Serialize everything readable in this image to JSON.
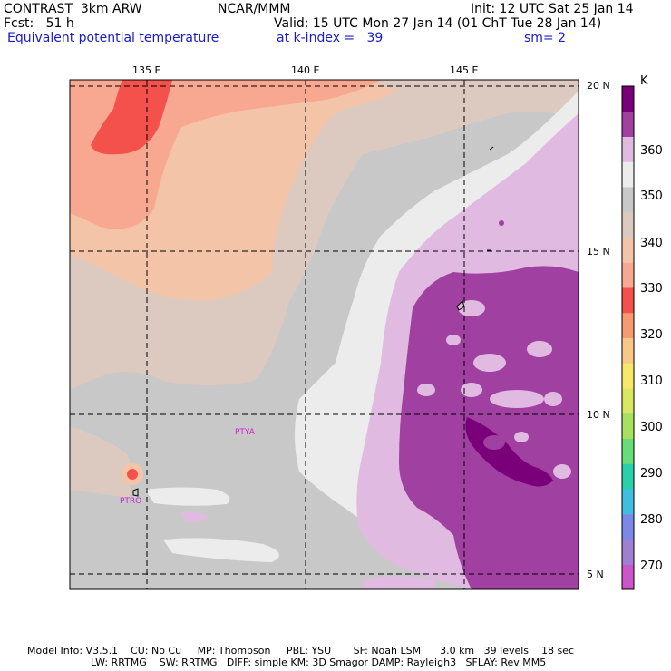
{
  "header": {
    "model_line": "CONTRAST  3km ARW",
    "center_line": "NCAR/MMM",
    "init_line": "Init: 12 UTC Sat 25 Jan 14",
    "fcst_line": "Fcst:   51 h",
    "valid_line": "Valid: 15 UTC Mon 27 Jan 14 (01 ChT Tue 28 Jan 14)",
    "field_name": "Equivalent potential temperature",
    "level_info": "at k-index =   39",
    "smoothing": "sm= 2"
  },
  "axes": {
    "lon_labels": [
      "135 E",
      "140 E",
      "145 E"
    ],
    "lat_labels": [
      "20 N",
      "15 N",
      "10 N",
      "5 N"
    ]
  },
  "stations": [
    "PTYA",
    "PTRO"
  ],
  "colorbar": {
    "unit": "K",
    "tick_labels": [
      "360",
      "350",
      "340",
      "330",
      "320",
      "310",
      "300",
      "290",
      "280",
      "270"
    ],
    "colors": [
      "#cc55cc",
      "#9f7fd0",
      "#7b88e8",
      "#3fbfe0",
      "#2ad0a8",
      "#66dd77",
      "#a8e060",
      "#d8e860",
      "#f8e868",
      "#f8c888",
      "#f89a70",
      "#f4504c",
      "#f8a890",
      "#f4c4a8",
      "#dccac0",
      "#c8c8c8",
      "#ececec",
      "#e0bae0",
      "#a040a0",
      "#7a007a"
    ]
  },
  "footer": {
    "line1": "Model Info: V3.5.1    CU: No Cu     MP: Thompson     PBL: YSU       SF: Noah LSM      3.0 km   39 levels    18 sec",
    "line2": "LW: RRTMG    SW: RRTMG   DIFF: simple KM: 3D Smagor DAMP: Rayleigh3   SFLAY: Rev MM5"
  }
}
